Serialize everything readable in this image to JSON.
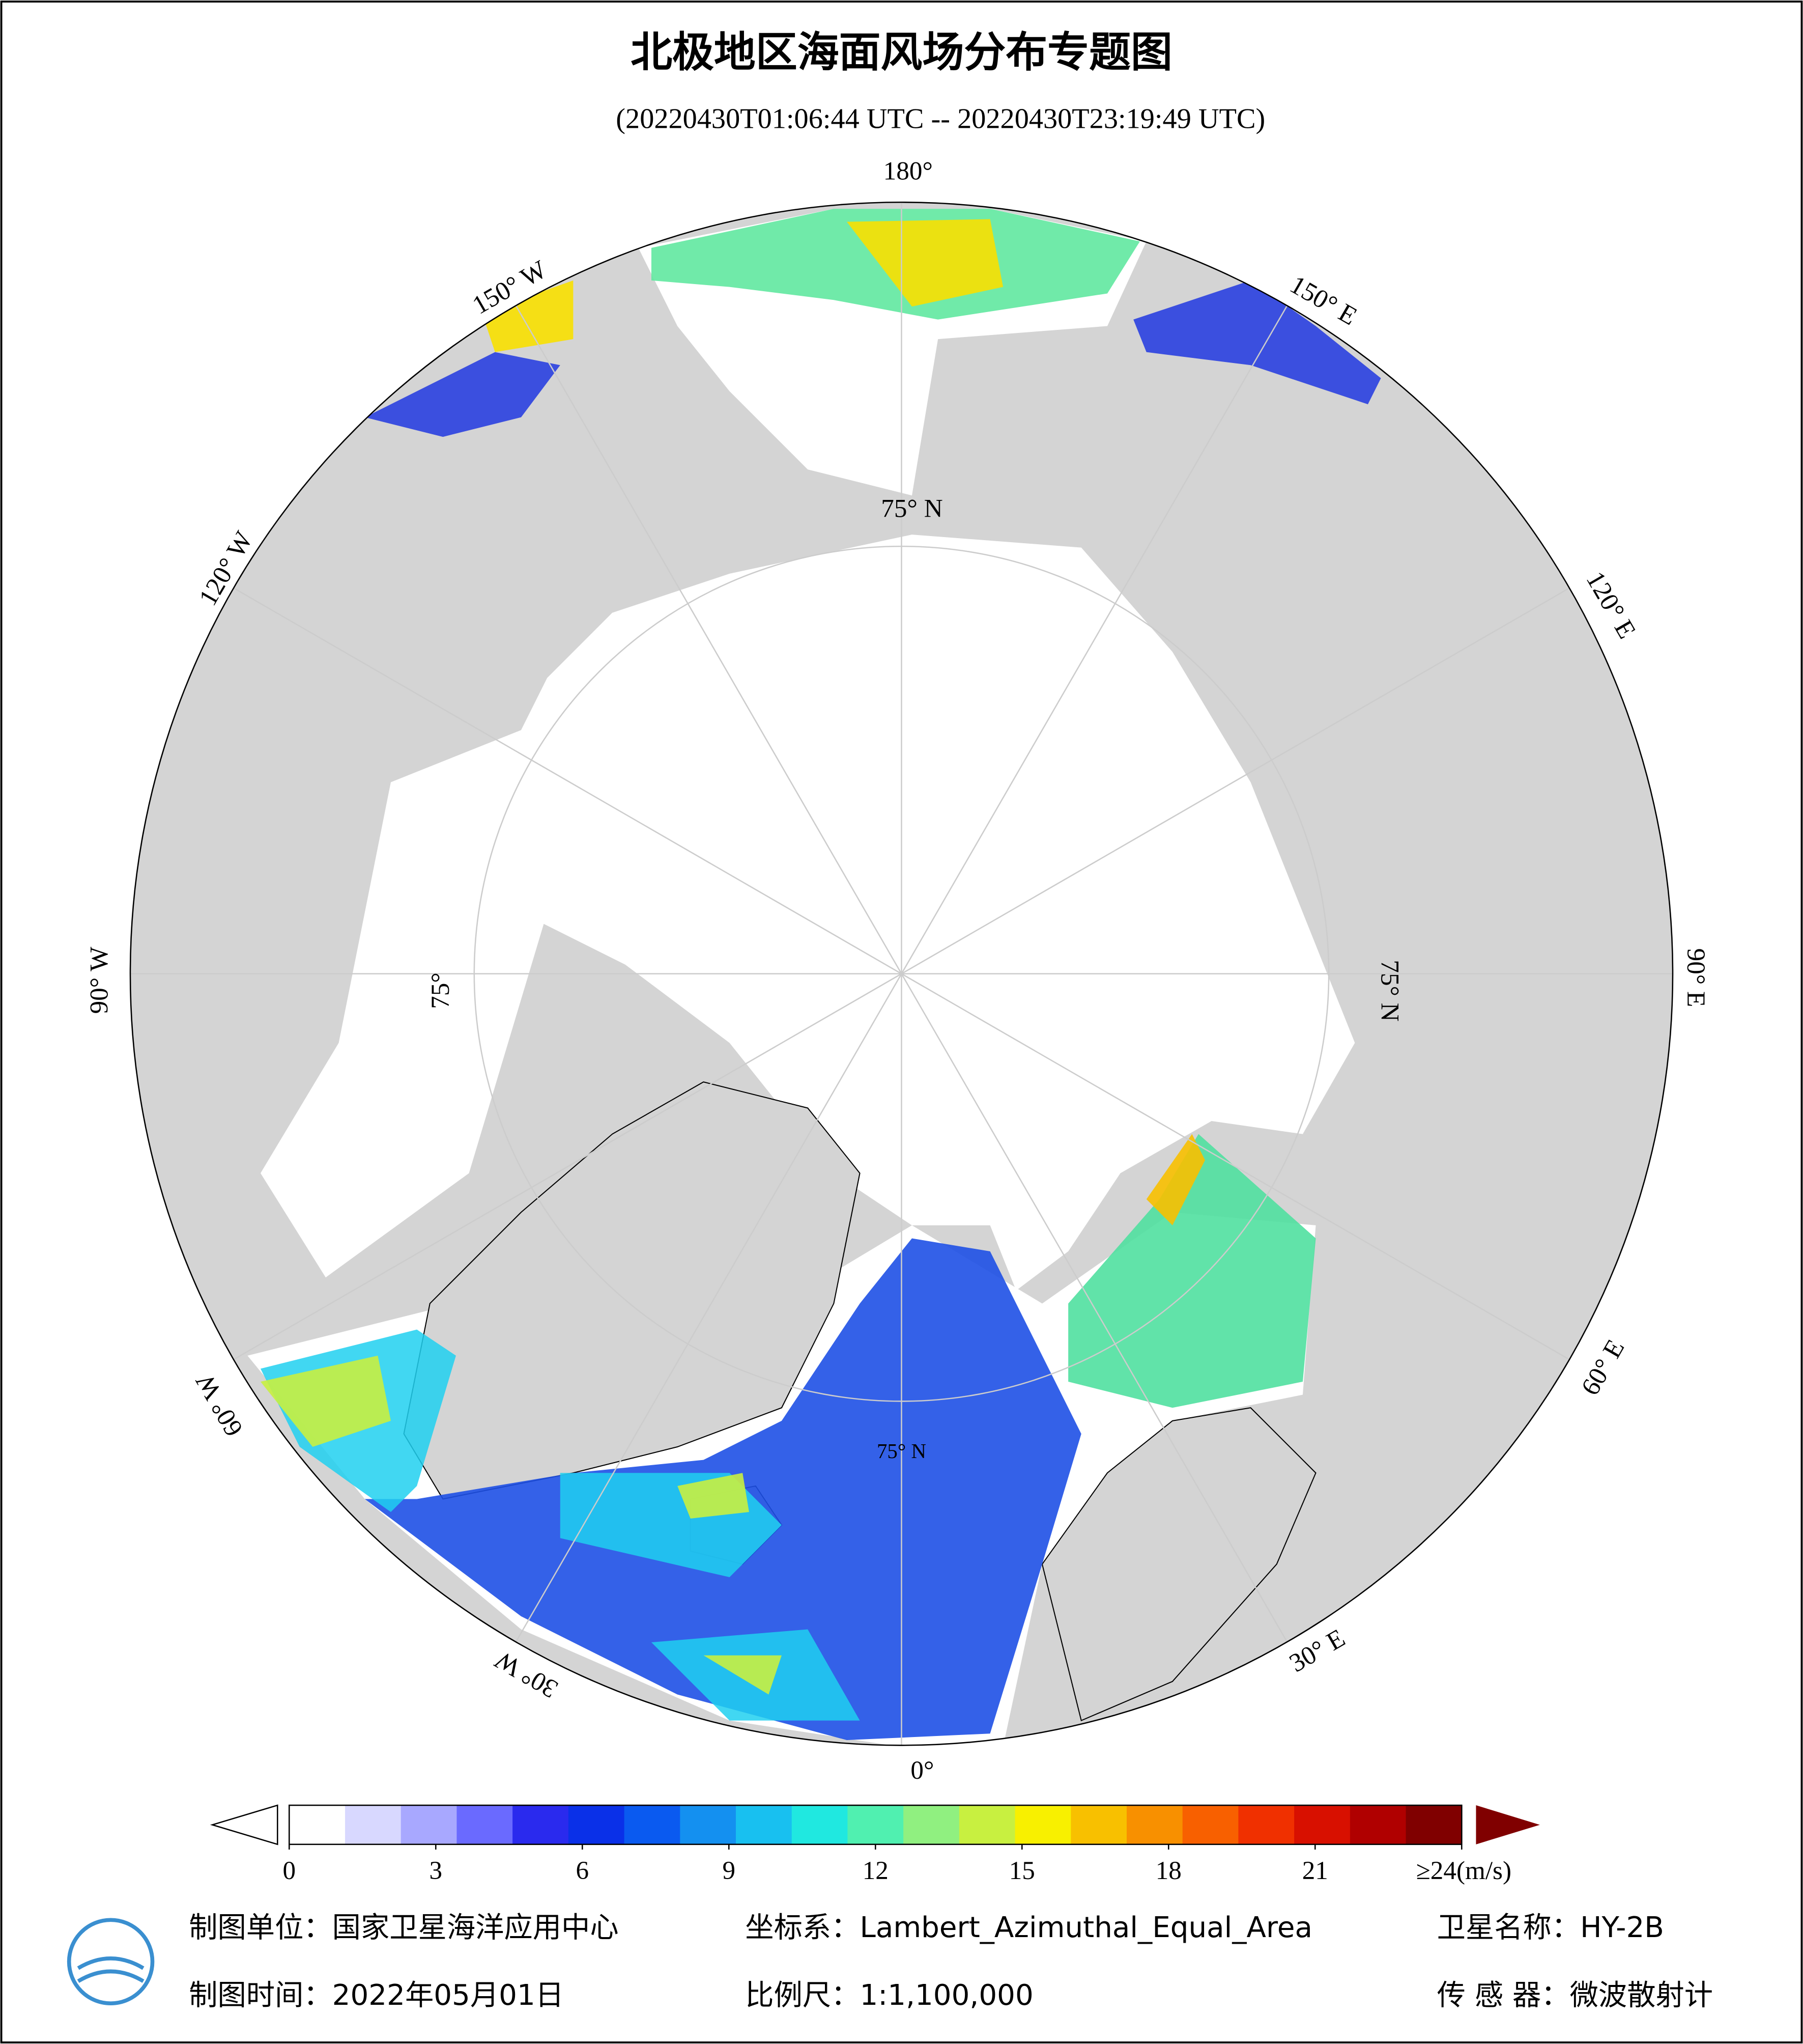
{
  "title": "北极地区海面风场分布专题图",
  "subtitle": "(20220430T01:06:44 UTC -- 20220430T23:19:49 UTC)",
  "lon_labels": [
    "180°",
    "150° E",
    "120° E",
    "90° E",
    "60° E",
    "30° E",
    "0°",
    "30° W",
    "60° W",
    "90° W",
    "120° W",
    "150° W"
  ],
  "lat_labels": [
    "75° N",
    "75° N",
    "75°",
    "75° N"
  ],
  "colorbar": {
    "range": [
      0,
      24
    ],
    "ticks": [
      0,
      3,
      6,
      9,
      12,
      15,
      18,
      21,
      {
        "value": 24,
        "label": "≥24(m/s)"
      }
    ],
    "colors": [
      "#ffffff",
      "#d8d8ff",
      "#a8a8ff",
      "#6a6aff",
      "#2a2aee",
      "#0a30e8",
      "#0a5af0",
      "#1490f0",
      "#18c0f0",
      "#20e8e0",
      "#50f0b0",
      "#90f080",
      "#c8f040",
      "#f8f000",
      "#f8c000",
      "#f89000",
      "#f86000",
      "#f03000",
      "#d81000",
      "#b00000",
      "#800000"
    ]
  },
  "footer": {
    "unit": "制图单位：国家卫星海洋应用中心",
    "coord": "坐标系：Lambert_Azimuthal_Equal_Area",
    "satellite": "卫星名称：HY-2B",
    "date": "制图时间：2022年05月01日",
    "scale": "比例尺：1:1,100,000",
    "sensor": "传 感 器：微波散射计"
  }
}
